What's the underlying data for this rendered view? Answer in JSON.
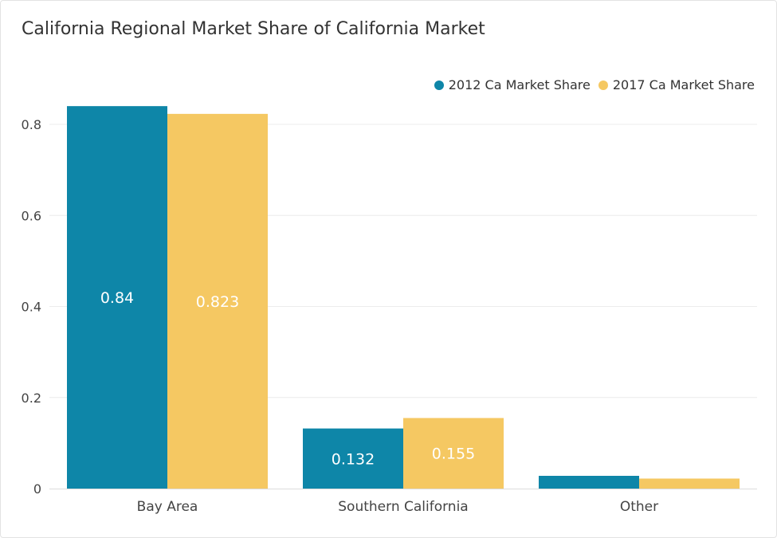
{
  "chart_data": {
    "type": "bar",
    "title": "California Regional Market Share of California Market",
    "categories": [
      "Bay Area",
      "Southern California",
      "Other"
    ],
    "series": [
      {
        "name": "2012 Ca Market Share",
        "color": "#0e86a8",
        "values": [
          0.84,
          0.132,
          0.028
        ],
        "labels": [
          "0.84",
          "0.132",
          ""
        ]
      },
      {
        "name": "2017 Ca Market Share",
        "color": "#f5c862",
        "values": [
          0.823,
          0.155,
          0.022
        ],
        "labels": [
          "0.823",
          "0.155",
          ""
        ]
      }
    ],
    "ylim": [
      0,
      0.8
    ],
    "yticks": [
      0,
      0.2,
      0.4,
      0.6,
      0.8
    ],
    "ytick_labels": [
      "0",
      "0.2",
      "0.4",
      "0.6",
      "0.8"
    ],
    "xlabel": "",
    "ylabel": "",
    "grid": true,
    "legend_position": "top-right"
  }
}
